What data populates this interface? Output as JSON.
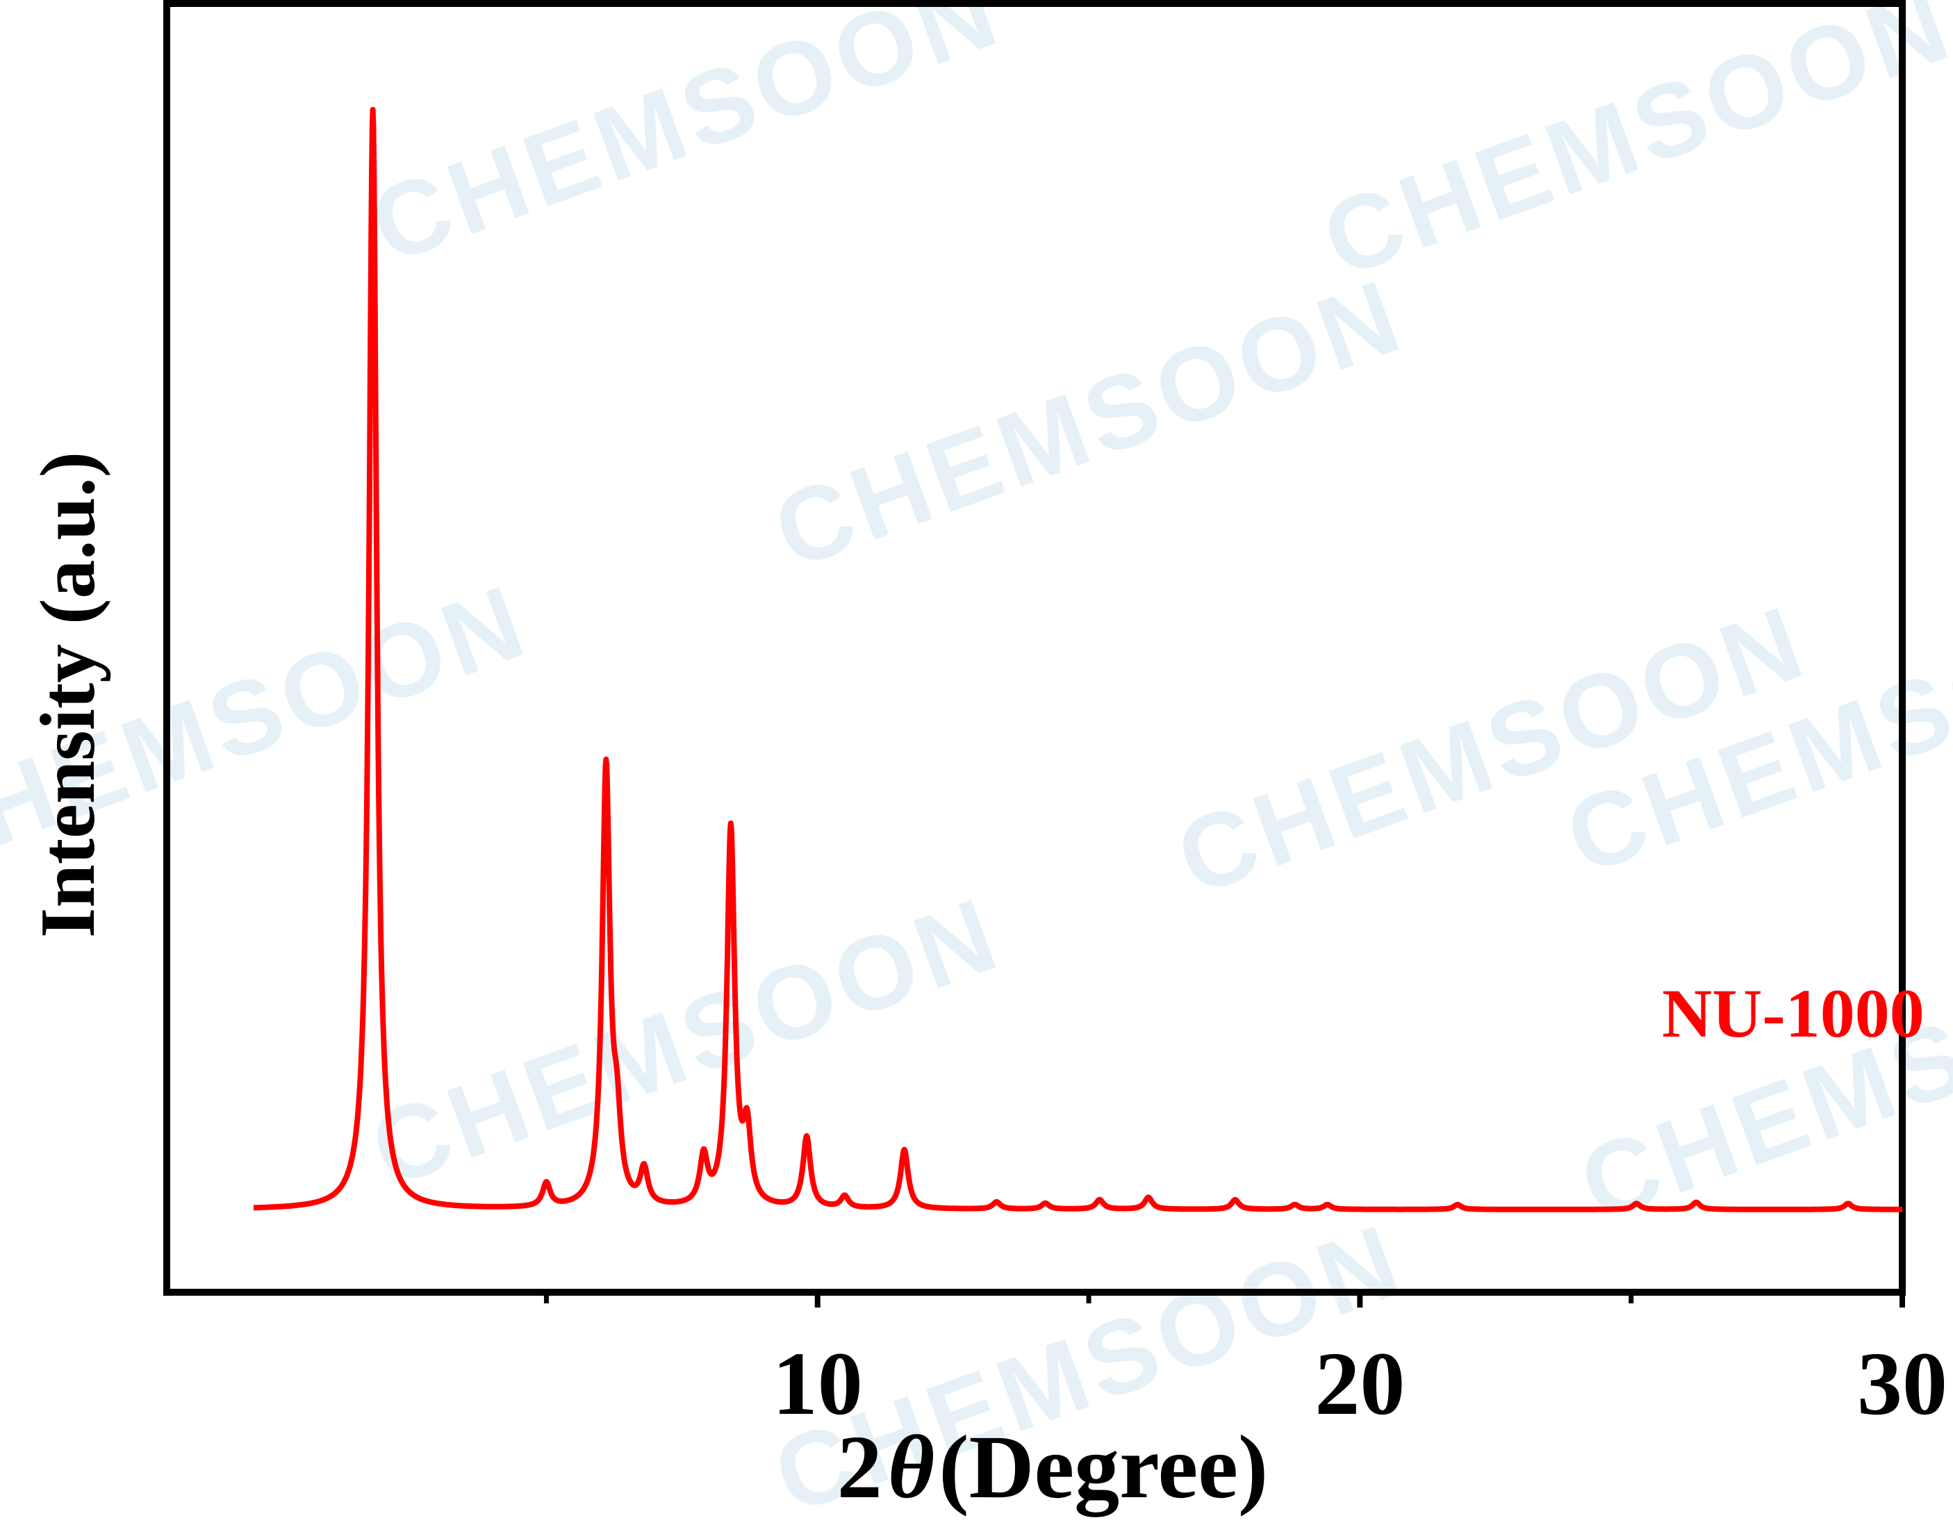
{
  "chart_data": {
    "type": "line",
    "title": "",
    "xlabel_prefix": "2",
    "xlabel_symbol": "θ",
    "xlabel_suffix": "(Degree)",
    "ylabel": "Intensity (a.u.)",
    "xlim": [
      -2,
      30
    ],
    "ylim": [
      -0.07,
      1.02
    ],
    "x_ticks": [
      10,
      20,
      30
    ],
    "x_tick_labels": [
      "10",
      "20",
      "30"
    ],
    "x_minor_ticks": [
      5,
      15,
      25
    ],
    "show_y_ticks": false,
    "grid": false,
    "series": [
      {
        "name": "NU-1000",
        "color": "#ff0000",
        "baseline": 0.0,
        "peaks": [
          {
            "x": 1.8,
            "y": 0.93
          },
          {
            "x": 5.0,
            "y": 0.02
          },
          {
            "x": 6.1,
            "y": 0.37
          },
          {
            "x": 6.3,
            "y": 0.06
          },
          {
            "x": 6.8,
            "y": 0.03
          },
          {
            "x": 7.9,
            "y": 0.04
          },
          {
            "x": 8.4,
            "y": 0.32
          },
          {
            "x": 8.7,
            "y": 0.06
          },
          {
            "x": 9.8,
            "y": 0.06
          },
          {
            "x": 10.5,
            "y": 0.01
          },
          {
            "x": 11.6,
            "y": 0.05
          },
          {
            "x": 13.3,
            "y": 0.006
          },
          {
            "x": 14.2,
            "y": 0.005
          },
          {
            "x": 15.2,
            "y": 0.008
          },
          {
            "x": 16.1,
            "y": 0.01
          },
          {
            "x": 17.7,
            "y": 0.008
          },
          {
            "x": 18.8,
            "y": 0.004
          },
          {
            "x": 19.4,
            "y": 0.004
          },
          {
            "x": 21.8,
            "y": 0.004
          },
          {
            "x": 25.1,
            "y": 0.005
          },
          {
            "x": 26.2,
            "y": 0.006
          },
          {
            "x": 29.0,
            "y": 0.005
          }
        ]
      }
    ],
    "legend_label": "NU-1000",
    "legend_color": "#ff0000",
    "watermark": "CHEMSOON"
  }
}
